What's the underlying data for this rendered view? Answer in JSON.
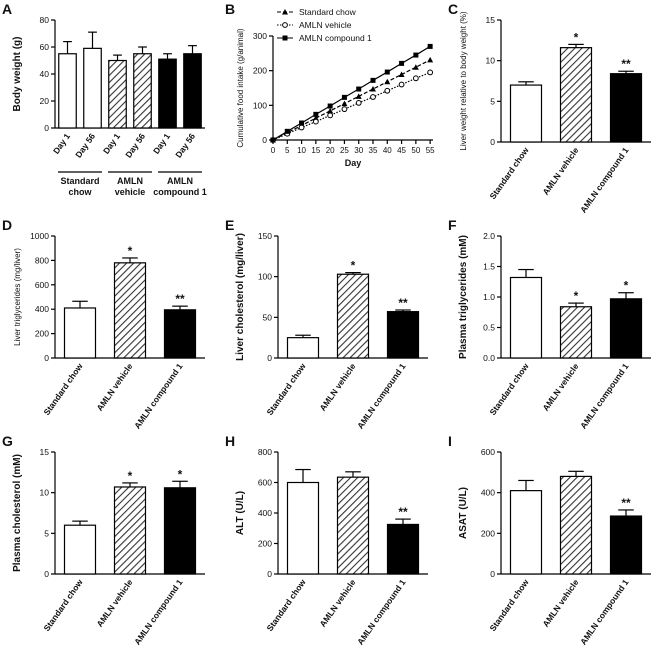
{
  "chart_data": [
    {
      "type": "bar",
      "panel": "A",
      "ylabel": "Body weight (g)",
      "categories": [
        "Day 1",
        "Day 56",
        "Day 1",
        "Day 56",
        "Day 1",
        "Day 56"
      ],
      "groups": [
        "Standard chow",
        "AMLN vehicle",
        "AMLN compound 1"
      ],
      "values": [
        55,
        59,
        50,
        55,
        51,
        55
      ],
      "errors": [
        9,
        12,
        4,
        5,
        4,
        6
      ],
      "patterns": [
        "open",
        "open",
        "hatched",
        "hatched",
        "solid",
        "solid"
      ],
      "ylim": [
        0,
        80
      ],
      "yticks": [
        0,
        20,
        40,
        60,
        80
      ]
    },
    {
      "type": "line",
      "panel": "B",
      "ylabel": "Cumulative food intake (g/animal)",
      "xlabel": "Day",
      "x": [
        0,
        5,
        10,
        15,
        20,
        25,
        30,
        35,
        40,
        45,
        50,
        55
      ],
      "series": [
        {
          "name": "Standard chow",
          "marker": "triangle",
          "values": [
            0,
            21,
            42,
            63,
            84,
            105,
            126,
            147,
            168,
            189,
            210,
            231
          ]
        },
        {
          "name": "AMLN vehicle",
          "marker": "circle",
          "values": [
            0,
            18,
            36,
            53,
            71,
            89,
            107,
            124,
            142,
            160,
            178,
            195
          ]
        },
        {
          "name": "AMLN compound 1",
          "marker": "square",
          "values": [
            0,
            25,
            49,
            74,
            98,
            123,
            147,
            172,
            196,
            221,
            245,
            270
          ]
        }
      ],
      "xlim": [
        0,
        56
      ],
      "xticks": [
        0,
        5,
        10,
        15,
        20,
        25,
        30,
        35,
        40,
        45,
        50,
        55
      ],
      "ylim": [
        0,
        300
      ],
      "yticks": [
        0,
        100,
        200,
        300
      ]
    },
    {
      "type": "bar",
      "panel": "C",
      "ylabel": "Liver weight relative to body weight (%)",
      "categories": [
        "Standard chow",
        "AMLN vehicle",
        "AMLN compound 1"
      ],
      "values": [
        7,
        11.6,
        8.4
      ],
      "errors": [
        0.4,
        0.4,
        0.3
      ],
      "annotations": [
        null,
        "*",
        "**"
      ],
      "patterns": [
        "open",
        "hatched",
        "solid"
      ],
      "ylim": [
        0,
        15
      ],
      "yticks": [
        0,
        5,
        10,
        15
      ]
    },
    {
      "type": "bar",
      "panel": "D",
      "ylabel": "Liver triglycerides (mg/liver)",
      "categories": [
        "Standard chow",
        "AMLN vehicle",
        "AMLN compound 1"
      ],
      "values": [
        410,
        780,
        395
      ],
      "errors": [
        55,
        40,
        30
      ],
      "annotations": [
        null,
        "*",
        "**"
      ],
      "patterns": [
        "open",
        "hatched",
        "solid"
      ],
      "ylim": [
        0,
        1000
      ],
      "yticks": [
        0,
        200,
        400,
        600,
        800,
        1000
      ]
    },
    {
      "type": "bar",
      "panel": "E",
      "ylabel": "Liver cholesterol (mg/liver)",
      "categories": [
        "Standard chow",
        "AMLN vehicle",
        "AMLN compound 1"
      ],
      "values": [
        25,
        103,
        57
      ],
      "errors": [
        3,
        2,
        2
      ],
      "annotations": [
        null,
        "*",
        "**"
      ],
      "patterns": [
        "open",
        "hatched",
        "solid"
      ],
      "ylim": [
        0,
        150
      ],
      "yticks": [
        0,
        50,
        100,
        150
      ]
    },
    {
      "type": "bar",
      "panel": "F",
      "ylabel": "Plasma triglycerides (mM)",
      "categories": [
        "Standard chow",
        "AMLN vehicle",
        "AMLN compound 1"
      ],
      "values": [
        1.32,
        0.84,
        0.97
      ],
      "errors": [
        0.13,
        0.06,
        0.1
      ],
      "annotations": [
        null,
        "*",
        "*"
      ],
      "patterns": [
        "open",
        "hatched",
        "solid"
      ],
      "ylim": [
        0,
        2
      ],
      "yticks": [
        {
          "value": 0,
          "label": "0.0"
        },
        0.5,
        {
          "value": 1,
          "label": "1.0"
        },
        1.5,
        {
          "value": 2,
          "label": "2.0"
        }
      ]
    },
    {
      "type": "bar",
      "panel": "G",
      "ylabel": "Plasma cholesterol (mM)",
      "categories": [
        "Standard chow",
        "AMLN vehicle",
        "AMLN compound 1"
      ],
      "values": [
        6,
        10.7,
        10.6
      ],
      "errors": [
        0.5,
        0.5,
        0.8
      ],
      "annotations": [
        null,
        "*",
        "*"
      ],
      "patterns": [
        "open",
        "hatched",
        "solid"
      ],
      "ylim": [
        0,
        15
      ],
      "yticks": [
        0,
        5,
        10,
        15
      ]
    },
    {
      "type": "bar",
      "panel": "H",
      "ylabel": "ALT (U/L)",
      "categories": [
        "Standard chow",
        "AMLN vehicle",
        "AMLN compound 1"
      ],
      "values": [
        600,
        635,
        325
      ],
      "errors": [
        85,
        35,
        35
      ],
      "annotations": [
        null,
        null,
        "**"
      ],
      "patterns": [
        "open",
        "hatched",
        "solid"
      ],
      "ylim": [
        0,
        800
      ],
      "yticks": [
        0,
        200,
        400,
        600,
        800
      ]
    },
    {
      "type": "bar",
      "panel": "I",
      "ylabel": "ASAT (U/L)",
      "categories": [
        "Standard chow",
        "AMLN vehicle",
        "AMLN compound 1"
      ],
      "values": [
        410,
        480,
        285
      ],
      "errors": [
        50,
        25,
        30
      ],
      "annotations": [
        null,
        null,
        "**"
      ],
      "patterns": [
        "open",
        "hatched",
        "solid"
      ],
      "ylim": [
        0,
        600
      ],
      "yticks": [
        0,
        200,
        400,
        600
      ]
    }
  ]
}
